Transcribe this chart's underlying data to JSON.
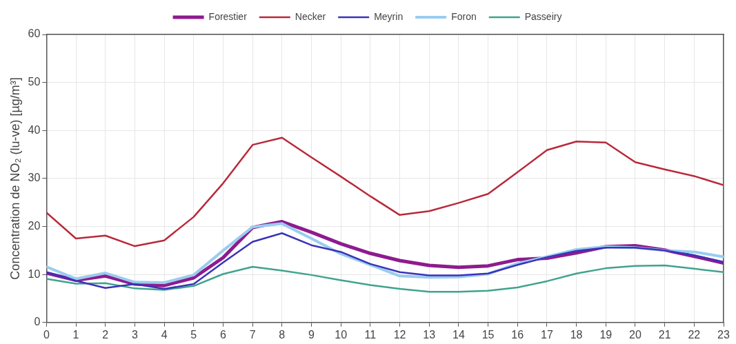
{
  "chart_data": {
    "type": "line",
    "ylabel": "Concentration de NO₂ (lu-ve) [µg/m³]",
    "x": [
      0,
      1,
      2,
      3,
      4,
      5,
      6,
      7,
      8,
      9,
      10,
      11,
      12,
      13,
      14,
      15,
      16,
      17,
      18,
      19,
      20,
      21,
      22,
      23
    ],
    "xlim": [
      0,
      23
    ],
    "xticks": [
      0,
      1,
      2,
      3,
      4,
      5,
      6,
      7,
      8,
      9,
      10,
      11,
      12,
      13,
      14,
      15,
      16,
      17,
      18,
      19,
      20,
      21,
      22,
      23
    ],
    "ylim": [
      0,
      60
    ],
    "yticks": [
      0,
      10,
      20,
      30,
      40,
      50,
      60
    ],
    "grid": true,
    "legend": "top",
    "marker": "none",
    "line_style": "solid",
    "series": [
      {
        "name": "Forestier",
        "color": "#8e1b8e",
        "values": [
          10.3,
          8.8,
          9.7,
          8.0,
          7.7,
          9.3,
          13.5,
          19.8,
          21.0,
          18.8,
          16.4,
          14.4,
          12.9,
          11.9,
          11.5,
          11.8,
          13.1,
          13.4,
          14.5,
          15.8,
          16.0,
          15.1,
          13.8,
          12.4
        ]
      },
      {
        "name": "Necker",
        "color": "#b8293a",
        "values": [
          22.9,
          17.5,
          18.1,
          15.9,
          17.1,
          22.0,
          29.0,
          37.0,
          38.5,
          34.4,
          30.4,
          26.3,
          22.4,
          23.2,
          24.9,
          26.8,
          31.3,
          35.9,
          37.7,
          37.5,
          33.4,
          31.9,
          30.5,
          28.6
        ]
      },
      {
        "name": "Meyrin",
        "color": "#3a33b8",
        "values": [
          10.5,
          8.7,
          7.2,
          8.0,
          7.0,
          8.0,
          12.5,
          16.8,
          18.6,
          16.1,
          14.7,
          12.2,
          10.5,
          9.8,
          9.8,
          10.2,
          12.0,
          13.6,
          14.9,
          15.6,
          15.6,
          15.0,
          14.0,
          12.6
        ]
      },
      {
        "name": "Foron",
        "color": "#99ccf0",
        "values": [
          11.6,
          9.1,
          10.3,
          8.4,
          8.3,
          9.9,
          15.0,
          19.9,
          20.6,
          17.5,
          14.3,
          12.0,
          9.7,
          9.4,
          9.5,
          10.1,
          12.3,
          13.7,
          15.2,
          15.8,
          15.6,
          15.0,
          14.7,
          13.7
        ]
      },
      {
        "name": "Passeiry",
        "color": "#3fa38e",
        "values": [
          9.1,
          8.1,
          8.2,
          7.1,
          6.8,
          7.6,
          10.1,
          11.6,
          10.8,
          9.9,
          8.8,
          7.8,
          7.0,
          6.4,
          6.4,
          6.6,
          7.3,
          8.6,
          10.2,
          11.3,
          11.8,
          11.9,
          11.2,
          10.5
        ]
      }
    ]
  }
}
